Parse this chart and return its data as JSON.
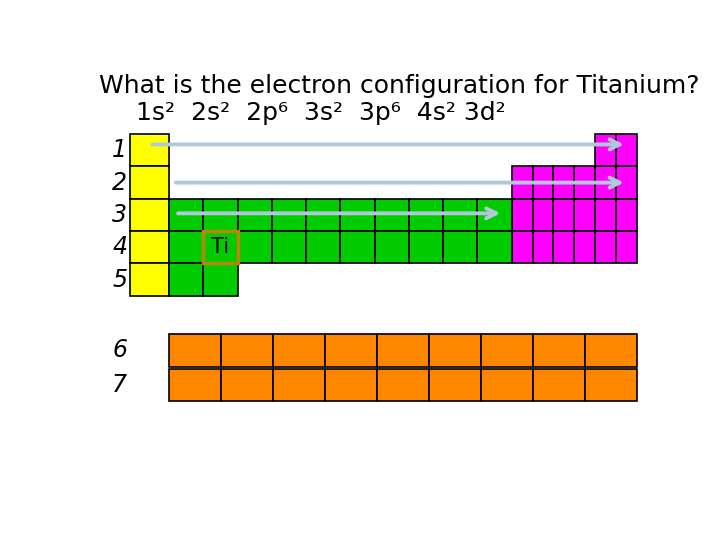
{
  "title_line1": "What is the electron configuration for Titanium?",
  "title_line2": "1s²  2s²  2p⁶  3s²  3p⁶  4s² 3d²",
  "bg_color": "#ffffff",
  "yellow": "#ffff00",
  "green": "#00cc00",
  "magenta": "#ff00ff",
  "orange": "#ff8800",
  "title_fontsize": 18,
  "subtitle_fontsize": 18,
  "label_fontsize": 17
}
